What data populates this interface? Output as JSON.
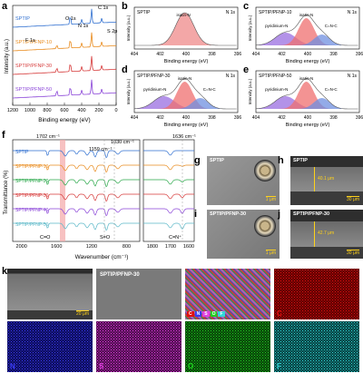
{
  "panels": {
    "a": {
      "label": "a",
      "xlabel": "Binding energy (eV)",
      "ylabel": "Intensity (a.u.)",
      "xticks": [
        "1200",
        "1000",
        "800",
        "600",
        "400",
        "200",
        "0"
      ],
      "peaks": [
        "C 1s",
        "O 1s",
        "N 1s",
        "S 2p",
        "F 1s"
      ],
      "series": [
        {
          "name": "SPTIP",
          "color": "#2f6fd0"
        },
        {
          "name": "SPTIP/PFNP-10",
          "color": "#e98b1d"
        },
        {
          "name": "SPTIP/PFNP-30",
          "color": "#d63a3a"
        },
        {
          "name": "SPTIP/PFNP-50",
          "color": "#8a44d8"
        }
      ]
    },
    "b": {
      "label": "b",
      "title": "SPTIP",
      "right": "N 1s",
      "peak": "isatin-N",
      "xlabel": "Binding energy (eV)",
      "ylabel": "Intensity (a.u.)",
      "xticks": [
        "404",
        "402",
        "400",
        "398",
        "396"
      ]
    },
    "c": {
      "label": "c",
      "title": "SPTIP/PFNP-10",
      "right": "N 1s",
      "peaks": [
        "isatin-N",
        "pyridinium-N",
        "C=N-C"
      ],
      "xlabel": "Binding energy (eV)",
      "ylabel": "Intensity (a.u.)",
      "xticks": [
        "404",
        "402",
        "400",
        "398",
        "396"
      ]
    },
    "d": {
      "label": "d",
      "title": "SPTIP/PFNP-30",
      "right": "N 1s",
      "peaks": [
        "isatin-N",
        "pyridinium-N",
        "C=N-C"
      ],
      "xlabel": "Binding energy (eV)",
      "ylabel": "Intensity (a.u.)",
      "xticks": [
        "404",
        "402",
        "400",
        "398",
        "396"
      ]
    },
    "e": {
      "label": "e",
      "title": "SPTIP/PFNP-50",
      "right": "N 1s",
      "peaks": [
        "isatin-N",
        "pyridinium-N",
        "C=N-C"
      ],
      "xlabel": "Binding energy (eV)",
      "ylabel": "Intensity (a.u.)",
      "xticks": [
        "404",
        "402",
        "400",
        "398",
        "396"
      ]
    },
    "f": {
      "label": "f",
      "xlabel": "Wavenumber (cm⁻¹)",
      "ylabel": "Transmittance (%)",
      "annotations": [
        "1702 cm⁻¹",
        "1159 cm⁻¹",
        "1030 cm⁻¹",
        "1636 cm⁻¹",
        "C=O",
        "S=O",
        "C=N⁺"
      ],
      "xticks": [
        "2000",
        "1600",
        "1200",
        "800",
        "1800",
        "1700",
        "1600"
      ],
      "series": [
        {
          "name": "SPTIP",
          "color": "#2f6fd0"
        },
        {
          "name": "SPTIP/PFNP-10",
          "color": "#e98b1d"
        },
        {
          "name": "SPTIP/PFNP-20",
          "color": "#2aa84a"
        },
        {
          "name": "SPTIP/PFNP-30",
          "color": "#d63a3a"
        },
        {
          "name": "SPTIP/PFNP-40",
          "color": "#8a44d8"
        },
        {
          "name": "SPTIP/PFNP-50",
          "color": "#5bb8c8"
        }
      ]
    },
    "g": {
      "label": "g",
      "title": "SPTIP",
      "scale": "1 μm"
    },
    "h": {
      "label": "h",
      "title": "SPTIP",
      "thickness": "40.1 μm",
      "scale": "30 μm"
    },
    "i": {
      "label": "i",
      "title": "SPTIP/PFNP-30",
      "scale": "1 μm"
    },
    "j": {
      "label": "j",
      "title": "SPTIP/PFNP-30",
      "thickness": "42.7 μm",
      "scale": "30 μm"
    },
    "k": {
      "label": "k",
      "title": "SPTIP/PFNP-30",
      "scale": "20 μm",
      "legend": [
        "C",
        "N",
        "S",
        "O",
        "F"
      ],
      "maps": [
        {
          "name": "C",
          "color": "#e01010",
          "bg": "#5a0000"
        },
        {
          "name": "N",
          "color": "#3a3af0",
          "bg": "#0a0a55"
        },
        {
          "name": "S",
          "color": "#e040e0",
          "bg": "#4a0a4a"
        },
        {
          "name": "O",
          "color": "#20d020",
          "bg": "#073f07"
        },
        {
          "name": "F",
          "color": "#30d8d8",
          "bg": "#063c3c"
        }
      ]
    }
  }
}
